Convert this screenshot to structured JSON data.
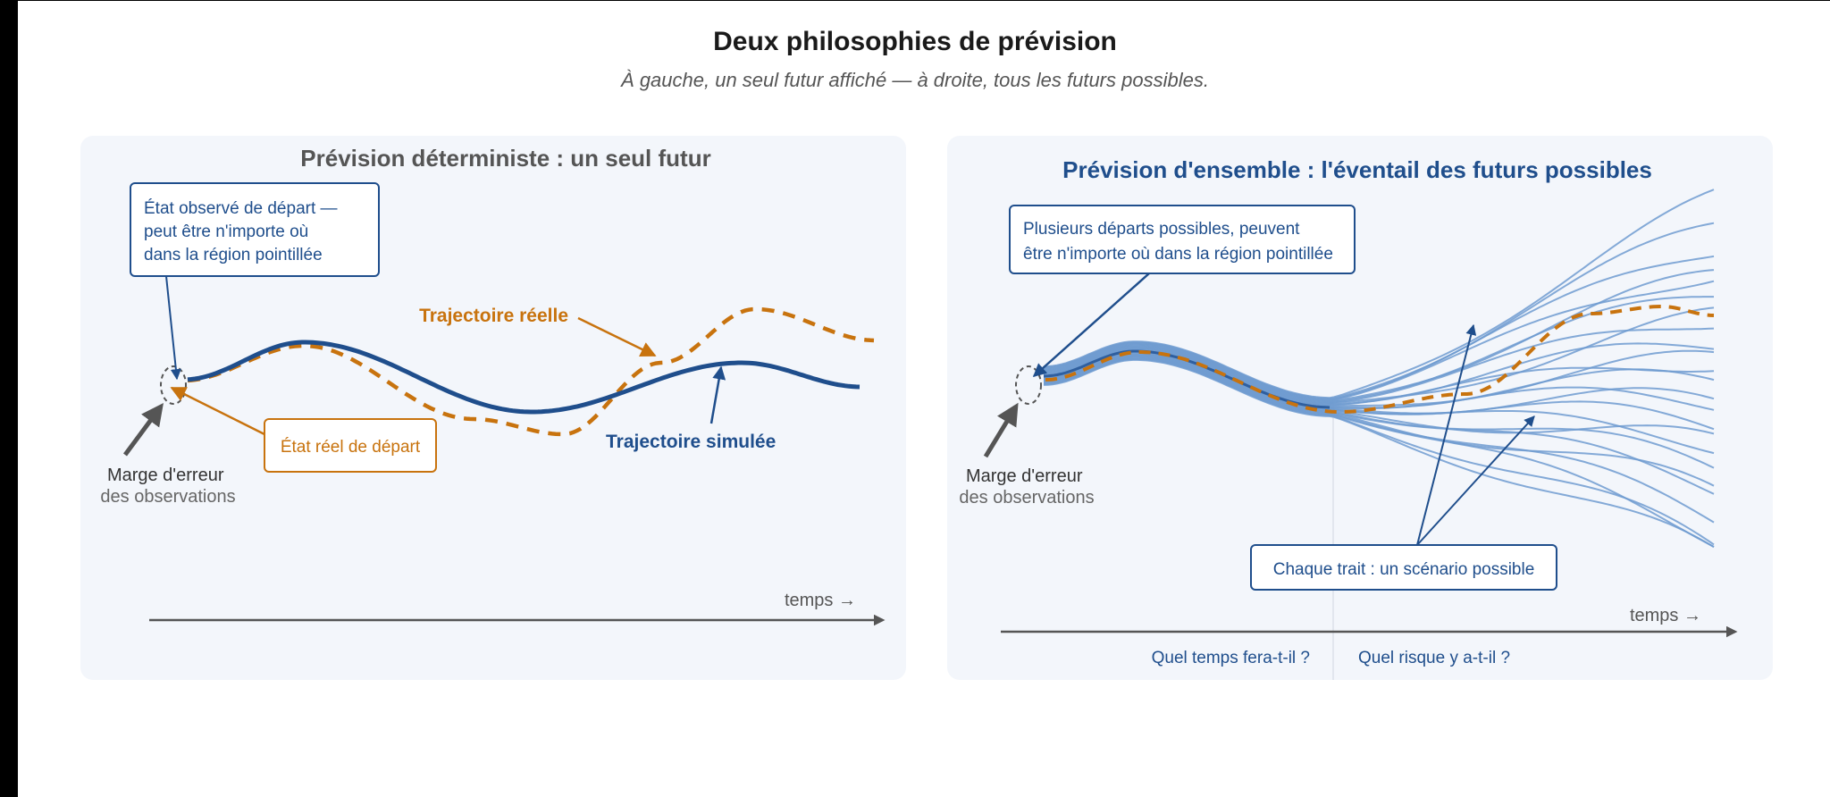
{
  "title": "Deux philosophies de prévision",
  "subtitle": "À gauche, un seul futur affiché — à droite, tous les futurs possibles.",
  "colors": {
    "blue": "#1f4e8c",
    "ensemble_blue": "#6f9bd0",
    "orange": "#c8730e",
    "gray": "#555555",
    "panel_bg": "#f3f6fb"
  },
  "left_panel": {
    "title": "Prévision déterministe : un seul futur",
    "callout_observed": [
      "État observé de départ —",
      "peut être n'importe où",
      "dans la région pointillée"
    ],
    "label_real": "Trajectoire réelle",
    "label_simulated": "Trajectoire simulée",
    "callout_real_start": "État réel de départ",
    "error_margin": [
      "Marge d'erreur",
      "des observations"
    ],
    "time_axis": "temps →"
  },
  "right_panel": {
    "title": "Prévision d'ensemble : l'éventail des futurs possibles",
    "callout_starts": [
      "Plusieurs départs possibles, peuvent",
      "être n'importe où dans la région pointillée"
    ],
    "callout_scenario": "Chaque trait : un scénario possible",
    "error_margin": [
      "Marge d'erreur",
      "des observations"
    ],
    "time_axis": "temps →",
    "question_weather": "Quel temps fera-t-il ?",
    "question_risk": "Quel risque y a-t-il ?"
  }
}
